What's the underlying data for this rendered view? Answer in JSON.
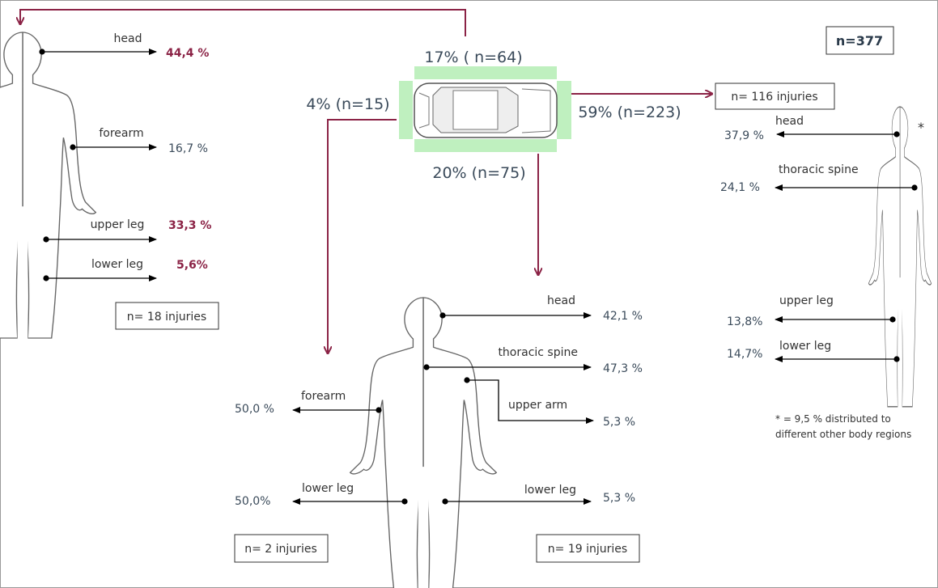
{
  "total": "n=377",
  "car": {
    "top": "17% ( n=64)",
    "left": "4% (n=15)",
    "right": "59% (n=223)",
    "bottom": "20% (n=75)"
  },
  "front": {
    "count": "n= 18 injuries",
    "regions": [
      {
        "label": "head",
        "value": "44,4 %"
      },
      {
        "label": "forearm",
        "value": "16,7 %"
      },
      {
        "label": "upper leg",
        "value": "33,3 %"
      },
      {
        "label": "lower leg",
        "value": "5,6%"
      }
    ]
  },
  "side": {
    "count": "n= 116 injuries",
    "asterisk": "*",
    "note": [
      "* = 9,5 % distributed to",
      "different other body regions"
    ],
    "regions": [
      {
        "label": "head",
        "value": "37,9 %"
      },
      {
        "label": "thoracic spine",
        "value": "24,1 %"
      },
      {
        "label": "upper leg",
        "value": "13,8%"
      },
      {
        "label": "lower leg",
        "value": "14,7%"
      }
    ]
  },
  "rear": {
    "count": "n= 19 injuries",
    "regions": [
      {
        "label": "head",
        "value": "42,1 %"
      },
      {
        "label": "thoracic spine",
        "value": "47,3 %"
      },
      {
        "label": "upper arm",
        "value": "5,3 %"
      },
      {
        "label": "lower leg",
        "value": "5,3 %"
      }
    ]
  },
  "left_side": {
    "count": "n= 2 injuries",
    "regions": [
      {
        "label": "forearm",
        "value": "50,0 %"
      },
      {
        "label": "lower leg",
        "value": "50,0%"
      }
    ]
  }
}
